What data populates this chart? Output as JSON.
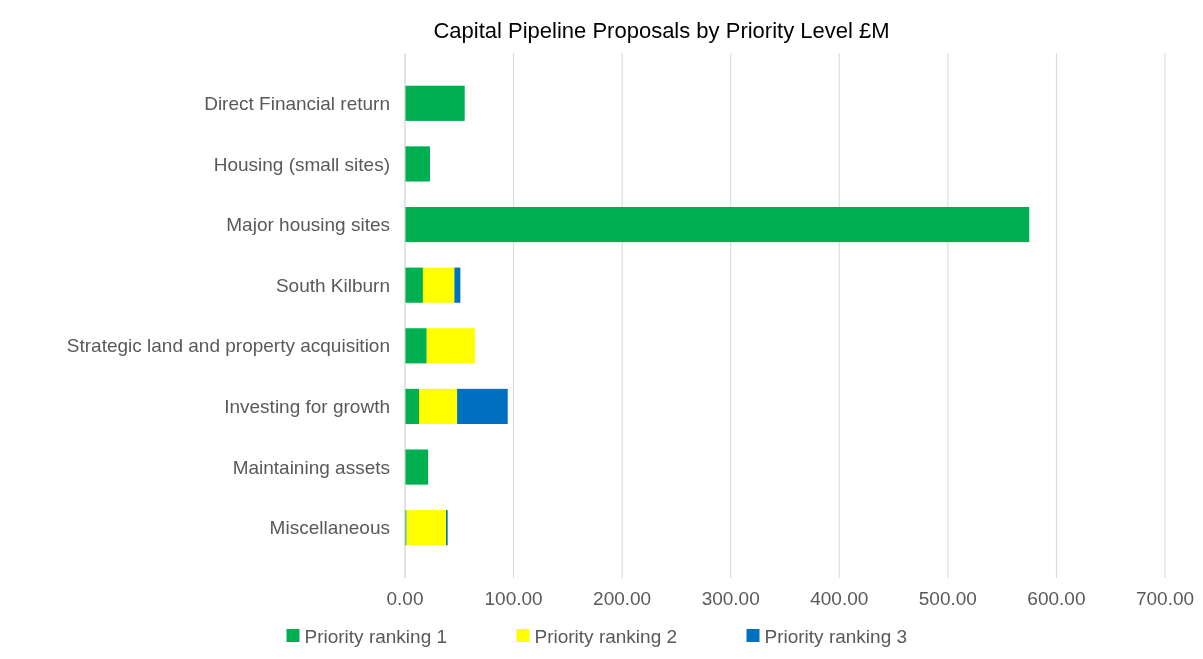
{
  "chart_data": {
    "type": "bar",
    "orientation": "horizontal",
    "stacked": true,
    "title": "Capital Pipeline Proposals by Priority Level £M",
    "categories": [
      "Direct Financial return",
      "Housing (small sites)",
      "Major housing sites",
      "South Kilburn",
      "Strategic land and property acquisition",
      "Investing for growth",
      "Maintaining assets",
      "Miscellaneous"
    ],
    "series": [
      {
        "name": "Priority ranking 1",
        "color": "#00b050",
        "values": [
          55,
          23,
          575,
          16.5,
          20,
          13,
          21.3,
          1.5
        ]
      },
      {
        "name": "Priority ranking 2",
        "color": "#ffff00",
        "values": [
          0,
          0,
          0,
          29,
          44.5,
          35,
          0,
          36.3
        ]
      },
      {
        "name": "Priority ranking 3",
        "color": "#0070c0",
        "values": [
          0,
          0,
          0,
          5.5,
          0,
          46.6,
          0,
          1.5
        ]
      }
    ],
    "xlim": [
      0,
      700
    ],
    "xticks": [
      {
        "value": 0,
        "label": "0.00"
      },
      {
        "value": 100,
        "label": "100.00"
      },
      {
        "value": 200,
        "label": "200.00"
      },
      {
        "value": 300,
        "label": "300.00"
      },
      {
        "value": 400,
        "label": "400.00"
      },
      {
        "value": 500,
        "label": "500.00"
      },
      {
        "value": 600,
        "label": "600.00"
      },
      {
        "value": 700,
        "label": "700.00"
      }
    ],
    "grid": "x",
    "legend": "bottom"
  }
}
